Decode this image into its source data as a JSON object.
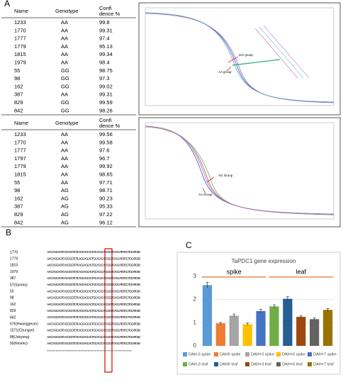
{
  "panel_a": {
    "label": "A",
    "headers": [
      "Name",
      "Genotype",
      "Confidence %"
    ],
    "table1": [
      [
        "1233",
        "AA",
        "99.8"
      ],
      [
        "1770",
        "AA",
        "99.31"
      ],
      [
        "1777",
        "AA",
        "97.4"
      ],
      [
        "1779",
        "AA",
        "95.13"
      ],
      [
        "1815",
        "AA",
        "99.34"
      ],
      [
        "1979",
        "AA",
        "98.4"
      ],
      [
        "55",
        "GG",
        "98.75"
      ],
      [
        "98",
        "GG",
        "97.3"
      ],
      [
        "162",
        "GG",
        "99.02"
      ],
      [
        "387",
        "AA",
        "99.31"
      ],
      [
        "829",
        "GG",
        "99.59"
      ],
      [
        "842",
        "GG",
        "98.26"
      ]
    ],
    "table2": [
      [
        "1233",
        "AA",
        "99.56"
      ],
      [
        "1770",
        "AA",
        "99.58"
      ],
      [
        "1777",
        "AA",
        "97.6"
      ],
      [
        "1797",
        "AA",
        "96.7"
      ],
      [
        "1779",
        "AA",
        "99.92"
      ],
      [
        "1815",
        "AA",
        "98.65"
      ],
      [
        "55",
        "AA",
        "97.71"
      ],
      [
        "98",
        "AG",
        "98.71"
      ],
      [
        "162",
        "AG",
        "90.23"
      ],
      [
        "387",
        "AG",
        "95.33"
      ],
      [
        "829",
        "AG",
        "97.22"
      ],
      [
        "842",
        "AG",
        "96.12"
      ]
    ],
    "curve1_labels": [
      "GG group",
      "AA group"
    ],
    "curve2_labels": [
      "AG Group",
      "AA Group"
    ]
  },
  "panel_b": {
    "label": "B",
    "names": [
      "1770",
      "1779",
      "1815",
      "1979",
      "387",
      "57(Sunma)",
      "55",
      "98",
      "162",
      "829",
      "842",
      "676(Hwanggeum)",
      "1571(Chungye)",
      "88(Jokyong)",
      "50(Keumu)"
    ],
    "sequence": "AACCAGGAGTCACGGGTCTCAGGAGCACTGCACCCACCGGTCAGCATGTCCTGGATG 60",
    "consensus": "**********************************************************"
  },
  "panel_c": {
    "label": "C",
    "chart_data": {
      "type": "bar",
      "title": "TaPDC1 gene expression",
      "groups": [
        "spike",
        "leaf"
      ],
      "categories": [
        "DAH-3 spike",
        "DAH0 spike",
        "DAH+3 spike",
        "DAH+5 spike",
        "DAH+7 spike",
        "DAH-3 leaf",
        "DAH0 leaf",
        "DAH+3 leaf",
        "DAH+5 leaf",
        "DAH+7 leaf"
      ],
      "values": [
        2.62,
        0.97,
        1.3,
        0.93,
        1.5,
        1.7,
        2.03,
        1.25,
        1.15,
        1.55
      ],
      "errors": [
        0.12,
        0.04,
        0.07,
        0.05,
        0.08,
        0.07,
        0.09,
        0.05,
        0.05,
        0.06
      ],
      "colors": [
        "#5b9bd5",
        "#ed7d31",
        "#a5a5a5",
        "#ffc000",
        "#4472c4",
        "#70ad47",
        "#255e91",
        "#9e480e",
        "#636363",
        "#997300"
      ],
      "ylim": [
        0,
        3.3
      ],
      "yticks": [
        0,
        1,
        2,
        3
      ],
      "grid": true
    }
  }
}
